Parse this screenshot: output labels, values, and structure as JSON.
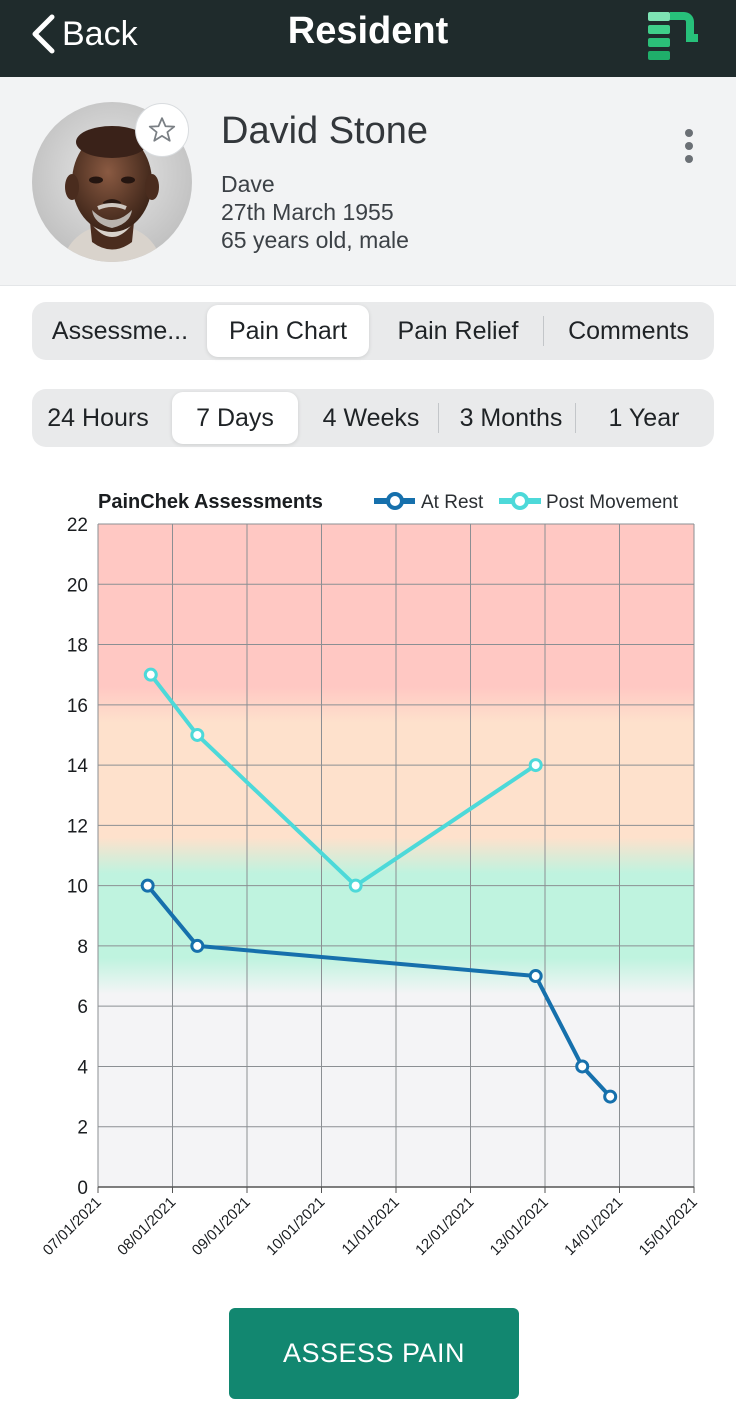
{
  "header": {
    "back_label": "Back",
    "title": "Resident"
  },
  "resident": {
    "name": "David Stone",
    "nickname": "Dave",
    "dob": "27th March 1955",
    "age_sex": "65 years old, male"
  },
  "tabs": [
    {
      "label": "Assessme...",
      "active": false
    },
    {
      "label": "Pain Chart",
      "active": true
    },
    {
      "label": "Pain Relief",
      "active": false
    },
    {
      "label": "Comments",
      "active": false
    }
  ],
  "ranges": [
    {
      "label": "24 Hours",
      "active": false
    },
    {
      "label": "7 Days",
      "active": true
    },
    {
      "label": "4 Weeks",
      "active": false
    },
    {
      "label": "3 Months",
      "active": false
    },
    {
      "label": "1 Year",
      "active": false
    }
  ],
  "chart_data": {
    "type": "line",
    "title": "PainChek Assessments",
    "x_ticks": [
      "07/01/2021",
      "08/01/2021",
      "09/01/2021",
      "10/01/2021",
      "11/01/2021",
      "12/01/2021",
      "13/01/2021",
      "14/01/2021",
      "15/01/2021"
    ],
    "ylim": [
      0,
      22
    ],
    "y_ticks": [
      0,
      2,
      4,
      6,
      8,
      10,
      12,
      14,
      16,
      18,
      20,
      22
    ],
    "grid": true,
    "legend_position": "top-right",
    "bands": [
      {
        "from": 0,
        "to": 7,
        "color": "#f4f4f6"
      },
      {
        "from": 7,
        "to": 11,
        "color": "#bff3df"
      },
      {
        "from": 11,
        "to": 16,
        "color": "#fee1cc"
      },
      {
        "from": 16,
        "to": 22,
        "color": "#ffc8c3"
      }
    ],
    "series": [
      {
        "name": "At Rest",
        "color": "#1670ac",
        "points": [
          {
            "x": "07/01/2021 16:00",
            "y": 10
          },
          {
            "x": "08/01/2021 08:00",
            "y": 8
          },
          {
            "x": "12/01/2021 21:00",
            "y": 7
          },
          {
            "x": "13/01/2021 12:00",
            "y": 4
          },
          {
            "x": "13/01/2021 21:00",
            "y": 3
          }
        ]
      },
      {
        "name": "Post Movement",
        "color": "#4dd9d9",
        "points": [
          {
            "x": "07/01/2021 17:00",
            "y": 17
          },
          {
            "x": "08/01/2021 08:00",
            "y": 15
          },
          {
            "x": "10/01/2021 11:00",
            "y": 10
          },
          {
            "x": "12/01/2021 21:00",
            "y": 14
          }
        ]
      }
    ]
  },
  "actions": {
    "assess_label": "ASSESS PAIN"
  },
  "colors": {
    "header_bg": "#1f2b2c",
    "accent": "#128770",
    "profile_bg": "#f2f3f4"
  }
}
